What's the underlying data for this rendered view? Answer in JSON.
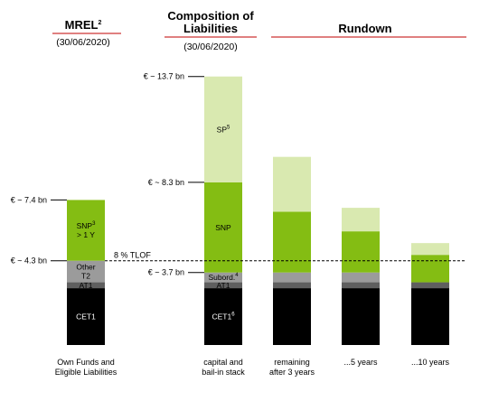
{
  "colors": {
    "cet1": "#000000",
    "at1": "#5f5f5f",
    "t2": "#9b9b9b",
    "snp": "#84bd13",
    "sp": "#d9e9b0",
    "rule": "#c00000"
  },
  "headers": {
    "mrel_title": "MREL",
    "mrel_sup": "2",
    "mrel_date": "(30/06/2020)",
    "comp_title_1": "Composition of",
    "comp_title_2": "Liabilities",
    "comp_date": "(30/06/2020)",
    "rundown_title": "Rundown"
  },
  "tlof_label": "8 % TLOF",
  "chart_data": {
    "type": "bar",
    "stacked": true,
    "unit": "€ bn",
    "ylim": [
      0,
      14.5
    ],
    "grid": false,
    "legend": "none",
    "categories": [
      {
        "line1": "Own Funds and",
        "line2": "Eligible Liabilities"
      },
      {
        "line1": "capital and",
        "line2": "bail-in stack"
      },
      {
        "line1": "remaining",
        "line2": "after 3 years"
      },
      {
        "line1": "...5 years",
        "line2": ""
      },
      {
        "line1": "...10 years",
        "line2": ""
      }
    ],
    "bars": [
      {
        "segments": [
          {
            "key": "cet1",
            "value": 2.9,
            "label": "CET1",
            "sup": ""
          },
          {
            "key": "at1",
            "value": 0.3,
            "label": "AT1",
            "sup": ""
          },
          {
            "key": "t2",
            "value": 1.1,
            "label_lines": [
              "Other",
              "T2"
            ],
            "sup": ""
          },
          {
            "key": "snp",
            "value": 3.1,
            "label_lines": [
              "SNP",
              "> 1 Y"
            ],
            "sup": "3"
          }
        ]
      },
      {
        "segments": [
          {
            "key": "cet1",
            "value": 2.9,
            "label": "CET1",
            "sup": "6"
          },
          {
            "key": "at1",
            "value": 0.3,
            "label": "AT1",
            "sup": ""
          },
          {
            "key": "t2",
            "value": 0.5,
            "label": "Subord.",
            "sup": "4"
          },
          {
            "key": "snp",
            "value": 4.6,
            "label": "SNP",
            "sup": ""
          },
          {
            "key": "sp",
            "value": 5.4,
            "label": "SP",
            "sup": "5"
          }
        ]
      },
      {
        "segments": [
          {
            "key": "cet1",
            "value": 2.9
          },
          {
            "key": "at1",
            "value": 0.3
          },
          {
            "key": "t2",
            "value": 0.5
          },
          {
            "key": "snp",
            "value": 3.1
          },
          {
            "key": "sp",
            "value": 2.8
          }
        ]
      },
      {
        "segments": [
          {
            "key": "cet1",
            "value": 2.9
          },
          {
            "key": "at1",
            "value": 0.3
          },
          {
            "key": "t2",
            "value": 0.5
          },
          {
            "key": "snp",
            "value": 2.1
          },
          {
            "key": "sp",
            "value": 1.2
          }
        ]
      },
      {
        "segments": [
          {
            "key": "cet1",
            "value": 2.9
          },
          {
            "key": "at1",
            "value": 0.3
          },
          {
            "key": "snp",
            "value": 1.4
          },
          {
            "key": "sp",
            "value": 0.6
          }
        ]
      }
    ],
    "value_markers": [
      {
        "label": "€ ~ 7.4 bn",
        "value": 7.4,
        "bar": 0
      },
      {
        "label": "€ ~ 4.3 bn",
        "value": 4.3,
        "bar": 0
      },
      {
        "label": "€ ~ 13.7 bn",
        "value": 13.7,
        "bar": 1
      },
      {
        "label": "€ ~ 8.3 bn",
        "value": 8.3,
        "bar": 1
      },
      {
        "label": "€ ~ 3.7 bn",
        "value": 3.7,
        "bar": 1
      }
    ],
    "reference_line": {
      "label": "8 % TLOF",
      "value": 4.3
    }
  }
}
